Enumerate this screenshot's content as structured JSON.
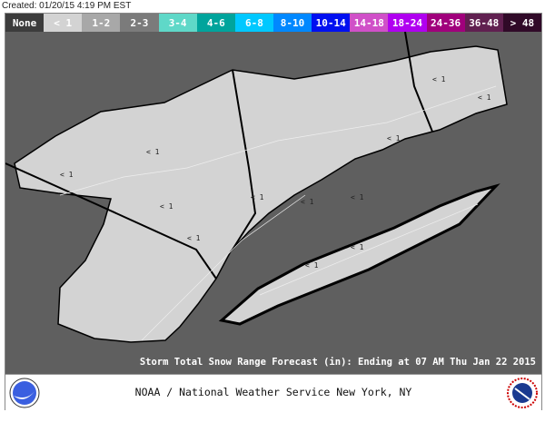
{
  "created": "Created: 01/20/15 4:19 PM EST",
  "legend": [
    {
      "label": "None",
      "color": "#3c3c3c"
    },
    {
      "label": "< 1",
      "color": "#d3d3d3"
    },
    {
      "label": "1-2",
      "color": "#a8a8a8"
    },
    {
      "label": "2-3",
      "color": "#7b7b7b"
    },
    {
      "label": "3-4",
      "color": "#5fd8c8"
    },
    {
      "label": "4-6",
      "color": "#00a49c"
    },
    {
      "label": "6-8",
      "color": "#00c8ff"
    },
    {
      "label": "8-10",
      "color": "#0088ff"
    },
    {
      "label": "10-14",
      "color": "#0010f0"
    },
    {
      "label": "14-18",
      "color": "#d050c8"
    },
    {
      "label": "18-24",
      "color": "#b000f0"
    },
    {
      "label": "24-36",
      "color": "#a0007c"
    },
    {
      "label": "36-48",
      "color": "#602050"
    },
    {
      "label": "> 48",
      "color": "#300a28"
    }
  ],
  "map": {
    "area_label": "< 1",
    "land_color": "#d3d3d3",
    "background_color": "#5f5f5f",
    "forecast_range": "< 1"
  },
  "caption": "Storm Total Snow Range Forecast (in):  Ending at 07 AM Thu Jan 22 2015",
  "footer": {
    "title": "NOAA / National Weather Service New York, NY",
    "left_logo": "NOAA",
    "right_logo": "National Weather Service"
  }
}
